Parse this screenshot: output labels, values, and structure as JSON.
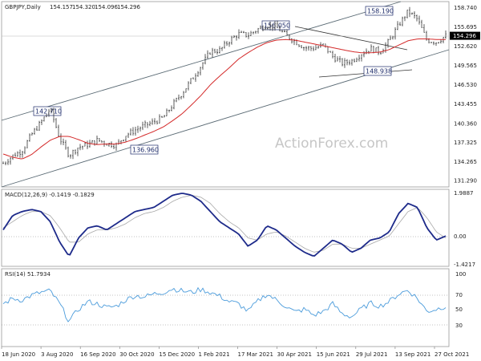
{
  "chart_data": [
    {
      "type": "candlestick",
      "title": "GBPJPY,Daily",
      "ohlc_readout": [
        "154.157",
        "154.320",
        "154.096",
        "154.296"
      ],
      "y_ticks": [
        131.29,
        134.265,
        137.325,
        140.36,
        143.455,
        146.53,
        149.565,
        152.62,
        155.695,
        158.74
      ],
      "ylim": [
        130.4,
        159.6
      ],
      "last_price": 154.296,
      "x_ticks": [
        "18 Jun 2020",
        "3 Aug 2020",
        "16 Sep 2020",
        "30 Oct 2020",
        "15 Dec 2020",
        "1 Feb 2021",
        "17 Mar 2021",
        "30 Apr 2021",
        "15 Jun 2021",
        "29 Jul 2021",
        "13 Sep 2021",
        "27 Oct 2021"
      ],
      "close_series": [
        134.0,
        135.2,
        136.0,
        138.6,
        140.5,
        142.7,
        138.0,
        135.3,
        136.6,
        137.0,
        137.7,
        137.2,
        136.9,
        138.5,
        139.3,
        140.0,
        140.6,
        141.3,
        143.3,
        145.2,
        147.3,
        149.5,
        151.8,
        152.0,
        153.5,
        154.6,
        154.4,
        155.3,
        156.0,
        155.7,
        154.4,
        153.4,
        152.4,
        152.3,
        152.8,
        151.0,
        149.9,
        150.3,
        151.4,
        152.3,
        151.7,
        153.5,
        156.0,
        158.2,
        156.9,
        153.6,
        153.3,
        154.3
      ],
      "ma_series": [
        135.5,
        135.0,
        134.7,
        135.4,
        136.6,
        137.7,
        138.3,
        138.3,
        137.8,
        137.2,
        137.0,
        137.1,
        137.1,
        137.4,
        137.9,
        138.5,
        139.1,
        139.8,
        140.8,
        141.9,
        143.3,
        144.8,
        146.5,
        147.9,
        149.2,
        150.6,
        151.6,
        152.5,
        153.2,
        153.6,
        153.7,
        153.6,
        153.3,
        153.0,
        152.7,
        152.4,
        152.1,
        151.8,
        151.6,
        151.6,
        151.7,
        152.1,
        152.8,
        153.5,
        153.8,
        153.8,
        153.7,
        153.7
      ],
      "annotations": [
        "142.710",
        "136.960",
        "156.050",
        "148.938",
        "158.190"
      ],
      "watermark": "ActionForex.com"
    },
    {
      "type": "line",
      "title": "MACD(12,26,9) -0.1419 -0.1829",
      "y_ticks": [
        "1.9887",
        "0.00",
        "-1.4217"
      ],
      "ylim": [
        -1.55,
        2.15
      ],
      "macd": [
        0.2,
        0.9,
        1.1,
        1.2,
        1.1,
        0.6,
        -0.4,
        -1.1,
        -0.2,
        0.3,
        0.4,
        0.2,
        0.5,
        0.8,
        1.1,
        1.2,
        1.3,
        1.6,
        1.9,
        2.0,
        1.9,
        1.6,
        1.1,
        0.6,
        0.3,
        0.0,
        -0.6,
        -0.3,
        0.4,
        0.2,
        -0.2,
        -0.6,
        -0.9,
        -1.1,
        -0.7,
        -0.3,
        -0.5,
        -0.9,
        -0.7,
        -0.3,
        -0.2,
        0.1,
        1.0,
        1.5,
        1.3,
        0.3,
        -0.3,
        -0.1
      ],
      "signal": [
        0.3,
        0.6,
        0.9,
        1.1,
        1.1,
        0.9,
        0.3,
        -0.4,
        -0.4,
        0.0,
        0.2,
        0.2,
        0.3,
        0.5,
        0.8,
        1.0,
        1.1,
        1.3,
        1.6,
        1.8,
        1.9,
        1.8,
        1.5,
        1.0,
        0.6,
        0.3,
        -0.2,
        -0.3,
        0.0,
        0.1,
        -0.1,
        -0.4,
        -0.7,
        -0.9,
        -0.8,
        -0.5,
        -0.5,
        -0.7,
        -0.7,
        -0.5,
        -0.3,
        -0.1,
        0.5,
        1.1,
        1.3,
        0.8,
        0.1,
        -0.2
      ]
    },
    {
      "type": "line",
      "title": "RSI(14) 51.7934",
      "y_ticks": [
        "100",
        "70",
        "50",
        "30"
      ],
      "ylim": [
        0,
        100
      ],
      "rsi": [
        55,
        62,
        60,
        66,
        70,
        72,
        55,
        32,
        48,
        58,
        55,
        50,
        52,
        60,
        66,
        64,
        68,
        70,
        75,
        72,
        70,
        74,
        70,
        65,
        58,
        55,
        45,
        58,
        68,
        60,
        52,
        44,
        48,
        40,
        45,
        55,
        42,
        38,
        48,
        56,
        52,
        58,
        68,
        73,
        62,
        45,
        48,
        52
      ]
    }
  ]
}
